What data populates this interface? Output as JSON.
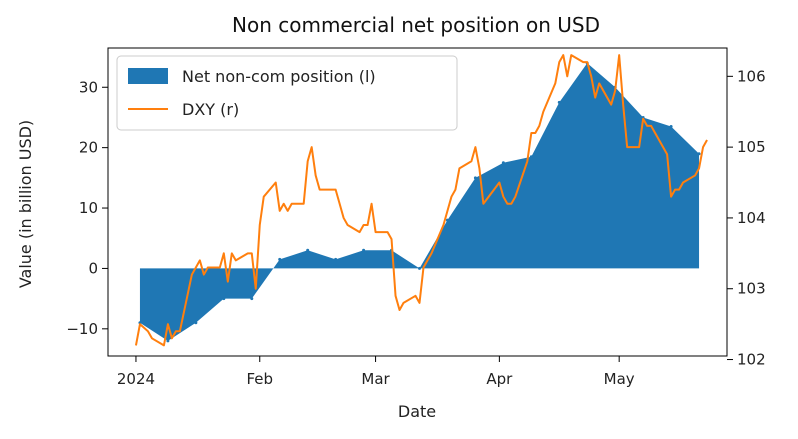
{
  "chart_data": {
    "type": "area",
    "title": "Non commercial net position on USD",
    "xlabel": "Date",
    "ylabel": "Value (in billion USD)",
    "x_tick_labels": [
      "2024",
      "Feb",
      "Mar",
      "Apr",
      "May"
    ],
    "x_ticks": [
      "2024-01-01",
      "2024-02-01",
      "2024-03-01",
      "2024-04-01",
      "2024-05-01"
    ],
    "xlim": [
      "2023-12-25",
      "2024-05-28"
    ],
    "ylim_left": [
      -14.5,
      36.5
    ],
    "yticks_left": [
      -10,
      0,
      10,
      20,
      30
    ],
    "ylim_right": [
      102.05,
      106.4
    ],
    "yticks_right": [
      102,
      103,
      104,
      105,
      106
    ],
    "legend": {
      "placement": "top-left",
      "entries": [
        "Net non-com position (l)",
        "DXY (r)"
      ]
    },
    "colors": {
      "area": "#1f77b4",
      "line": "#ff7f0e"
    },
    "series": [
      {
        "name": "Net non-com position (l)",
        "axis": "left",
        "type": "area",
        "x": [
          "2024-01-02",
          "2024-01-09",
          "2024-01-16",
          "2024-01-23",
          "2024-01-30",
          "2024-02-06",
          "2024-02-13",
          "2024-02-20",
          "2024-02-27",
          "2024-03-05",
          "2024-03-12",
          "2024-03-19",
          "2024-03-26",
          "2024-04-02",
          "2024-04-09",
          "2024-04-16",
          "2024-04-23",
          "2024-04-30",
          "2024-05-07",
          "2024-05-14",
          "2024-05-21"
        ],
        "values": [
          -9.0,
          -12.0,
          -9.0,
          -5.0,
          -5.0,
          1.5,
          3.0,
          1.5,
          3.0,
          3.0,
          0.0,
          8.0,
          15.0,
          17.5,
          18.5,
          27.5,
          34.0,
          30.0,
          25.0,
          23.5,
          19.0
        ]
      },
      {
        "name": "DXY (r)",
        "axis": "right",
        "type": "line",
        "x": [
          "2024-01-01",
          "2024-01-02",
          "2024-01-04",
          "2024-01-05",
          "2024-01-08",
          "2024-01-09",
          "2024-01-10",
          "2024-01-11",
          "2024-01-12",
          "2024-01-15",
          "2024-01-16",
          "2024-01-17",
          "2024-01-18",
          "2024-01-19",
          "2024-01-22",
          "2024-01-23",
          "2024-01-24",
          "2024-01-25",
          "2024-01-26",
          "2024-01-29",
          "2024-01-30",
          "2024-01-31",
          "2024-02-01",
          "2024-02-02",
          "2024-02-05",
          "2024-02-06",
          "2024-02-07",
          "2024-02-08",
          "2024-02-09",
          "2024-02-12",
          "2024-02-13",
          "2024-02-14",
          "2024-02-15",
          "2024-02-16",
          "2024-02-20",
          "2024-02-21",
          "2024-02-22",
          "2024-02-23",
          "2024-02-26",
          "2024-02-27",
          "2024-02-28",
          "2024-02-29",
          "2024-03-01",
          "2024-03-04",
          "2024-03-05",
          "2024-03-06",
          "2024-03-07",
          "2024-03-08",
          "2024-03-11",
          "2024-03-12",
          "2024-03-13",
          "2024-03-14",
          "2024-03-15",
          "2024-03-18",
          "2024-03-19",
          "2024-03-20",
          "2024-03-21",
          "2024-03-22",
          "2024-03-25",
          "2024-03-26",
          "2024-03-27",
          "2024-03-28",
          "2024-04-01",
          "2024-04-02",
          "2024-04-03",
          "2024-04-04",
          "2024-04-05",
          "2024-04-08",
          "2024-04-09",
          "2024-04-10",
          "2024-04-11",
          "2024-04-12",
          "2024-04-15",
          "2024-04-16",
          "2024-04-17",
          "2024-04-18",
          "2024-04-19",
          "2024-04-22",
          "2024-04-23",
          "2024-04-24",
          "2024-04-25",
          "2024-04-26",
          "2024-04-29",
          "2024-04-30",
          "2024-05-01",
          "2024-05-02",
          "2024-05-03",
          "2024-05-06",
          "2024-05-07",
          "2024-05-08",
          "2024-05-09",
          "2024-05-10",
          "2024-05-13",
          "2024-05-14",
          "2024-05-15",
          "2024-05-16",
          "2024-05-17",
          "2024-05-20",
          "2024-05-21",
          "2024-05-22",
          "2024-05-23"
        ],
        "values": [
          102.2,
          102.5,
          102.4,
          102.3,
          102.2,
          102.5,
          102.3,
          102.4,
          102.4,
          103.2,
          103.3,
          103.4,
          103.2,
          103.3,
          103.3,
          103.5,
          103.1,
          103.5,
          103.4,
          103.5,
          103.5,
          103.0,
          103.9,
          104.3,
          104.5,
          104.1,
          104.2,
          104.1,
          104.2,
          104.2,
          104.8,
          105.0,
          104.6,
          104.4,
          104.4,
          104.2,
          104.0,
          103.9,
          103.8,
          103.9,
          103.9,
          104.2,
          103.8,
          103.8,
          103.7,
          102.9,
          102.7,
          102.8,
          102.9,
          102.8,
          103.3,
          103.4,
          103.5,
          103.9,
          104.1,
          104.3,
          104.4,
          104.7,
          104.8,
          105.0,
          104.7,
          104.2,
          104.5,
          104.3,
          104.2,
          104.2,
          104.3,
          104.8,
          105.2,
          105.2,
          105.3,
          105.5,
          105.9,
          106.2,
          106.3,
          106.0,
          106.3,
          106.2,
          106.2,
          106.0,
          105.7,
          105.9,
          105.6,
          105.8,
          106.3,
          105.6,
          105.0,
          105.0,
          105.4,
          105.3,
          105.3,
          105.2,
          104.9,
          104.3,
          104.4,
          104.4,
          104.5,
          104.6,
          104.7,
          105.0,
          105.1
        ]
      }
    ]
  }
}
